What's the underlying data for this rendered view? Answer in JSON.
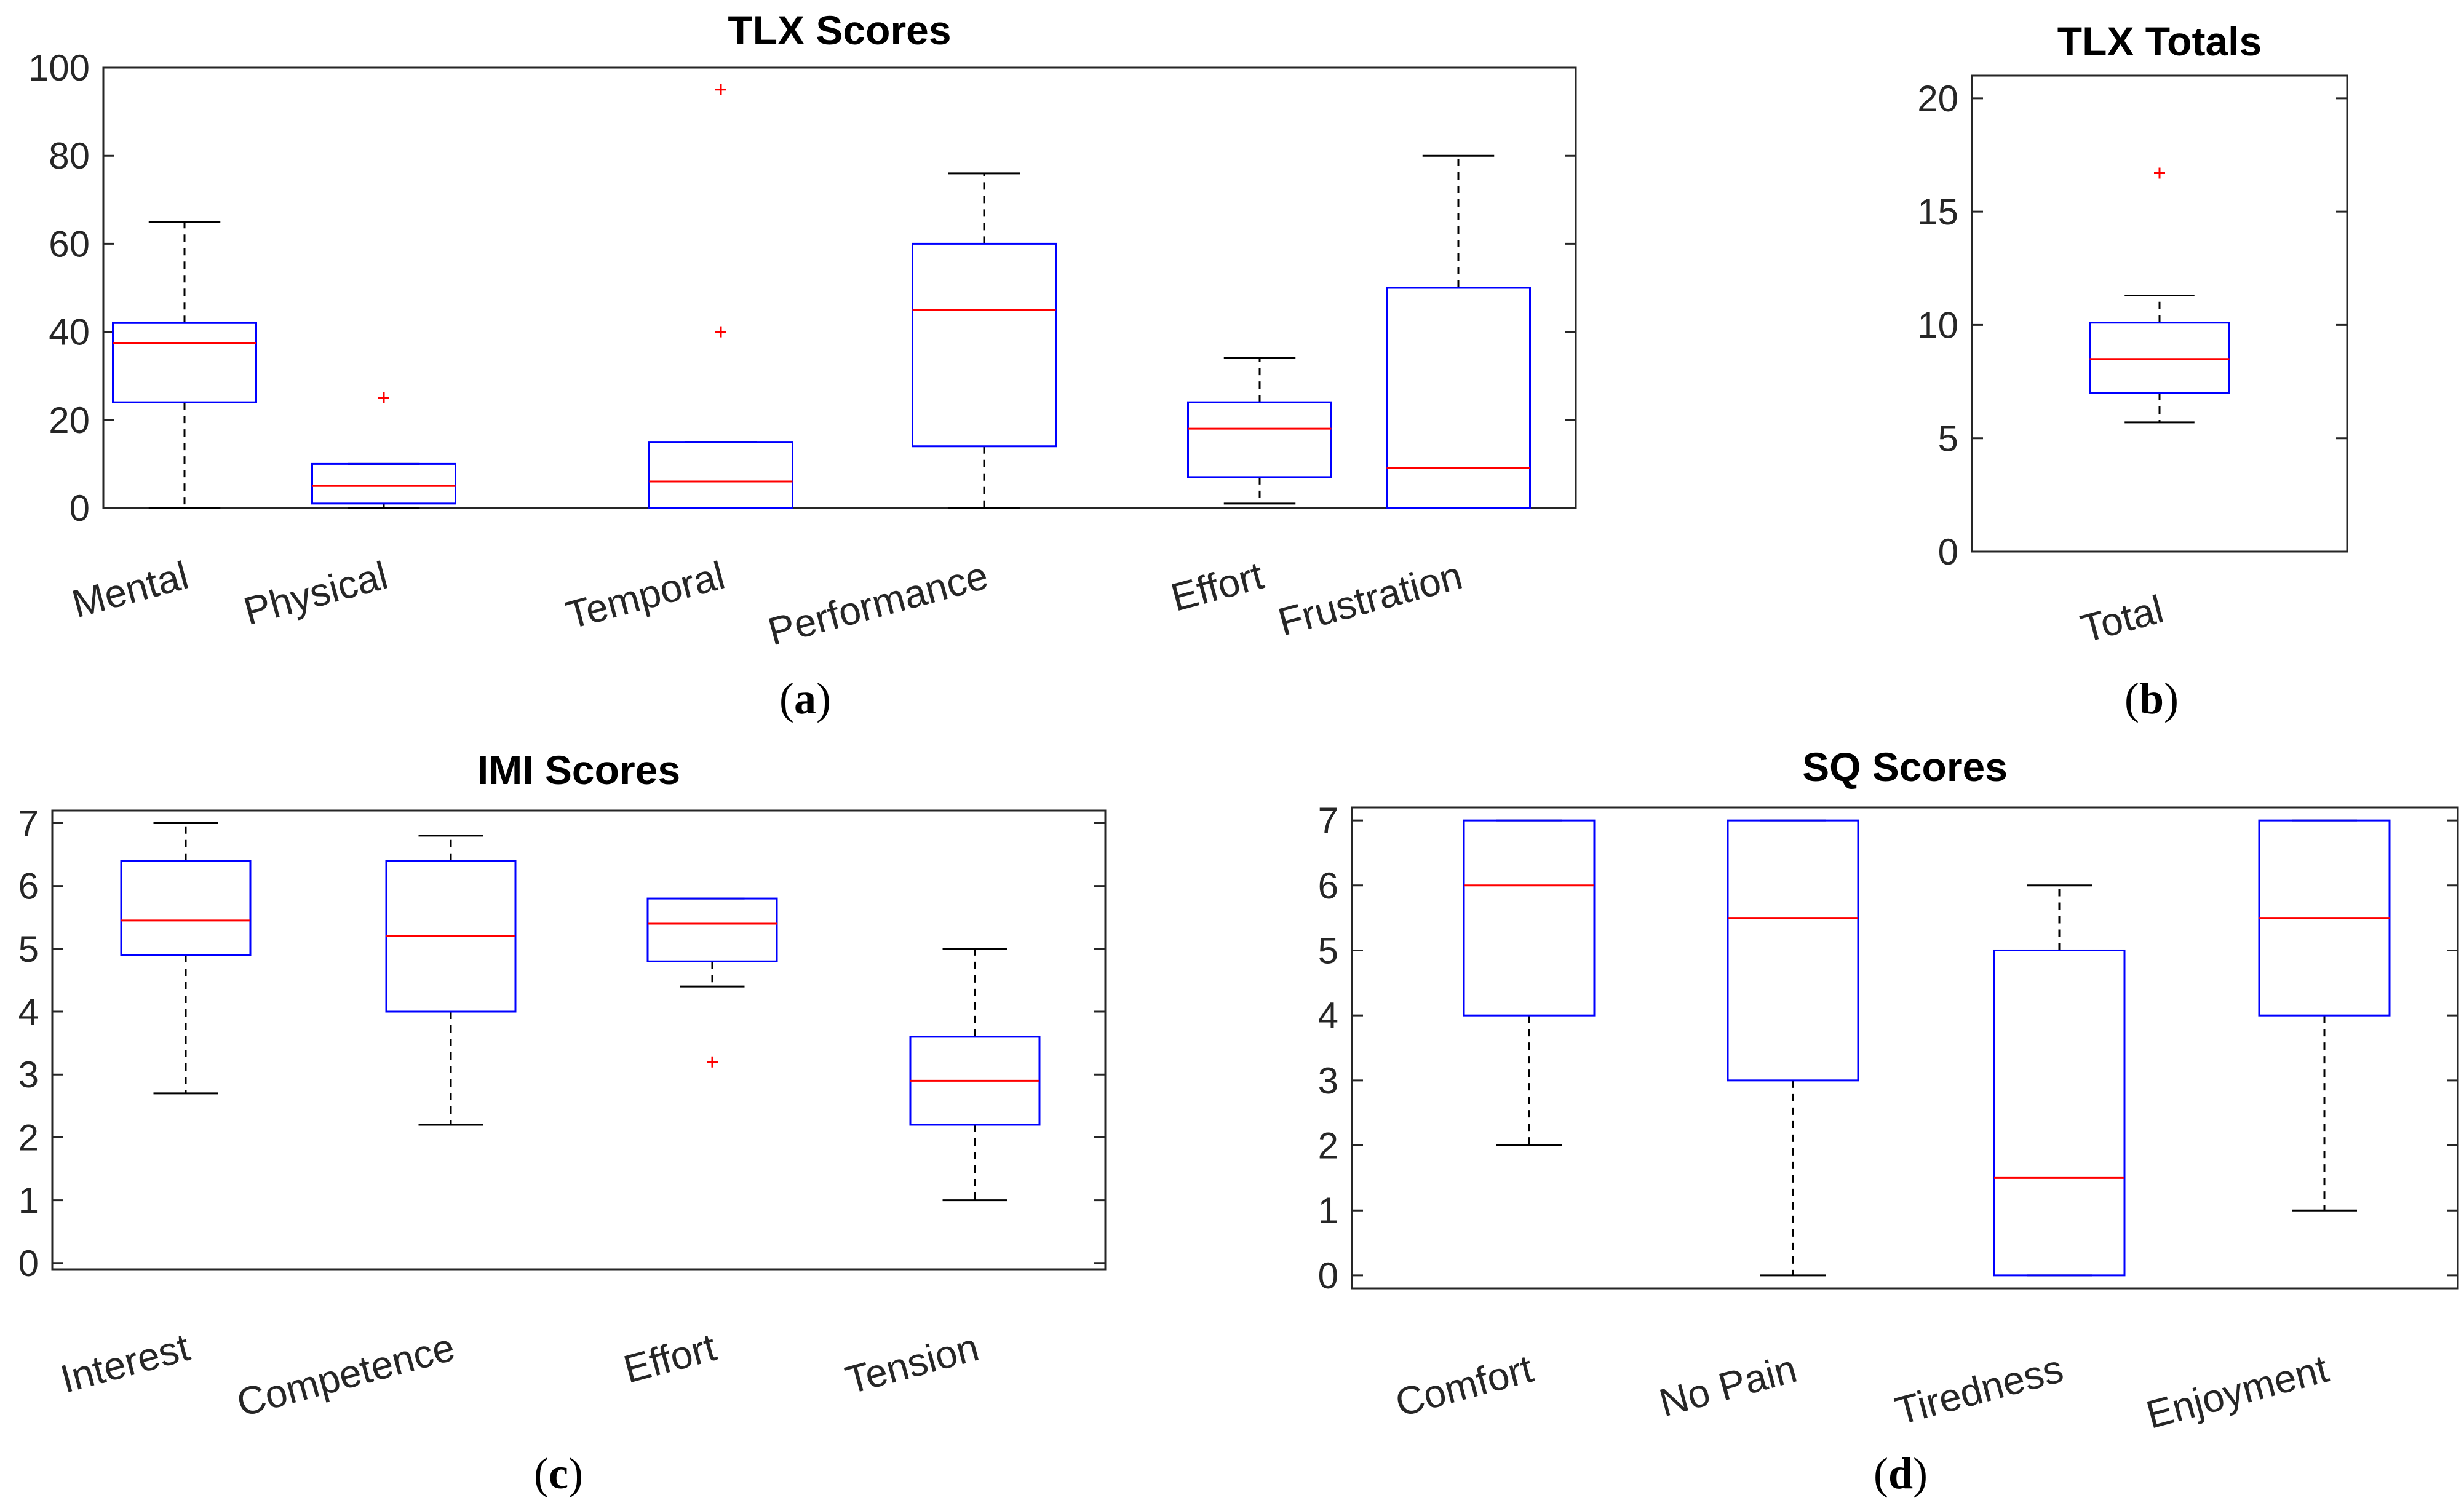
{
  "chart_data": [
    {
      "id": "a",
      "type": "boxplot",
      "title": "TLX Scores",
      "subfigure_label": "a",
      "ylim": [
        0,
        100
      ],
      "yticks": [
        0,
        20,
        40,
        60,
        80,
        100
      ],
      "categories": [
        "Mental",
        "Physical",
        "Temporal",
        "Performance",
        "Effort",
        "Frustration"
      ],
      "boxes": [
        {
          "lower_whisker": 0,
          "q1": 24,
          "median": 37.5,
          "q3": 42,
          "upper_whisker": 65,
          "outliers": []
        },
        {
          "lower_whisker": 0,
          "q1": 1,
          "median": 5,
          "q3": 10,
          "upper_whisker": 10,
          "outliers": [
            25
          ]
        },
        {
          "lower_whisker": 0,
          "q1": 0,
          "median": 6,
          "q3": 15,
          "upper_whisker": 15,
          "outliers": [
            40,
            95
          ]
        },
        {
          "lower_whisker": 0,
          "q1": 14,
          "median": 45,
          "q3": 60,
          "upper_whisker": 76,
          "outliers": []
        },
        {
          "lower_whisker": 1,
          "q1": 7,
          "median": 18,
          "q3": 24,
          "upper_whisker": 34,
          "outliers": []
        },
        {
          "lower_whisker": 0,
          "q1": 0,
          "median": 9,
          "q3": 50,
          "upper_whisker": 80,
          "outliers": []
        }
      ]
    },
    {
      "id": "b",
      "type": "boxplot",
      "title": "TLX Totals",
      "subfigure_label": "b",
      "ylim": [
        0,
        21
      ],
      "yticks": [
        0,
        5,
        10,
        15,
        20
      ],
      "categories": [
        "Total"
      ],
      "boxes": [
        {
          "lower_whisker": 5.7,
          "q1": 7,
          "median": 8.5,
          "q3": 10.1,
          "upper_whisker": 11.3,
          "outliers": [
            16.7
          ]
        }
      ]
    },
    {
      "id": "c",
      "type": "boxplot",
      "title": "IMI Scores",
      "subfigure_label": "c",
      "ylim": [
        -0.1,
        7.2
      ],
      "yticks": [
        0,
        1,
        2,
        3,
        4,
        5,
        6,
        7
      ],
      "categories": [
        "Interest",
        "Competence",
        "Effort",
        "Tension"
      ],
      "boxes": [
        {
          "lower_whisker": 2.7,
          "q1": 4.9,
          "median": 5.45,
          "q3": 6.4,
          "upper_whisker": 7,
          "outliers": []
        },
        {
          "lower_whisker": 2.2,
          "q1": 4,
          "median": 5.2,
          "q3": 6.4,
          "upper_whisker": 6.8,
          "outliers": []
        },
        {
          "lower_whisker": 4.4,
          "q1": 4.8,
          "median": 5.4,
          "q3": 5.8,
          "upper_whisker": 5.8,
          "outliers": [
            3.2
          ]
        },
        {
          "lower_whisker": 1,
          "q1": 2.2,
          "median": 2.9,
          "q3": 3.6,
          "upper_whisker": 5,
          "outliers": []
        }
      ]
    },
    {
      "id": "d",
      "type": "boxplot",
      "title": "SQ Scores",
      "subfigure_label": "d",
      "ylim": [
        -0.2,
        7.2
      ],
      "yticks": [
        0,
        1,
        2,
        3,
        4,
        5,
        6,
        7
      ],
      "categories": [
        "Comfort",
        "No Pain",
        "Tiredness",
        "Enjoyment"
      ],
      "boxes": [
        {
          "lower_whisker": 2,
          "q1": 4,
          "median": 6,
          "q3": 7,
          "upper_whisker": 7,
          "outliers": []
        },
        {
          "lower_whisker": 0,
          "q1": 3,
          "median": 5.5,
          "q3": 7,
          "upper_whisker": 7,
          "outliers": []
        },
        {
          "lower_whisker": 0,
          "q1": 0,
          "median": 1.5,
          "q3": 5,
          "upper_whisker": 6,
          "outliers": []
        },
        {
          "lower_whisker": 1,
          "q1": 4,
          "median": 5.5,
          "q3": 7,
          "upper_whisker": 7,
          "outliers": []
        }
      ]
    }
  ],
  "colors": {
    "box": "#0000ff",
    "median": "#ff0000",
    "whisker": "#000000",
    "outlier": "#ff0000",
    "axis": "#262626"
  }
}
